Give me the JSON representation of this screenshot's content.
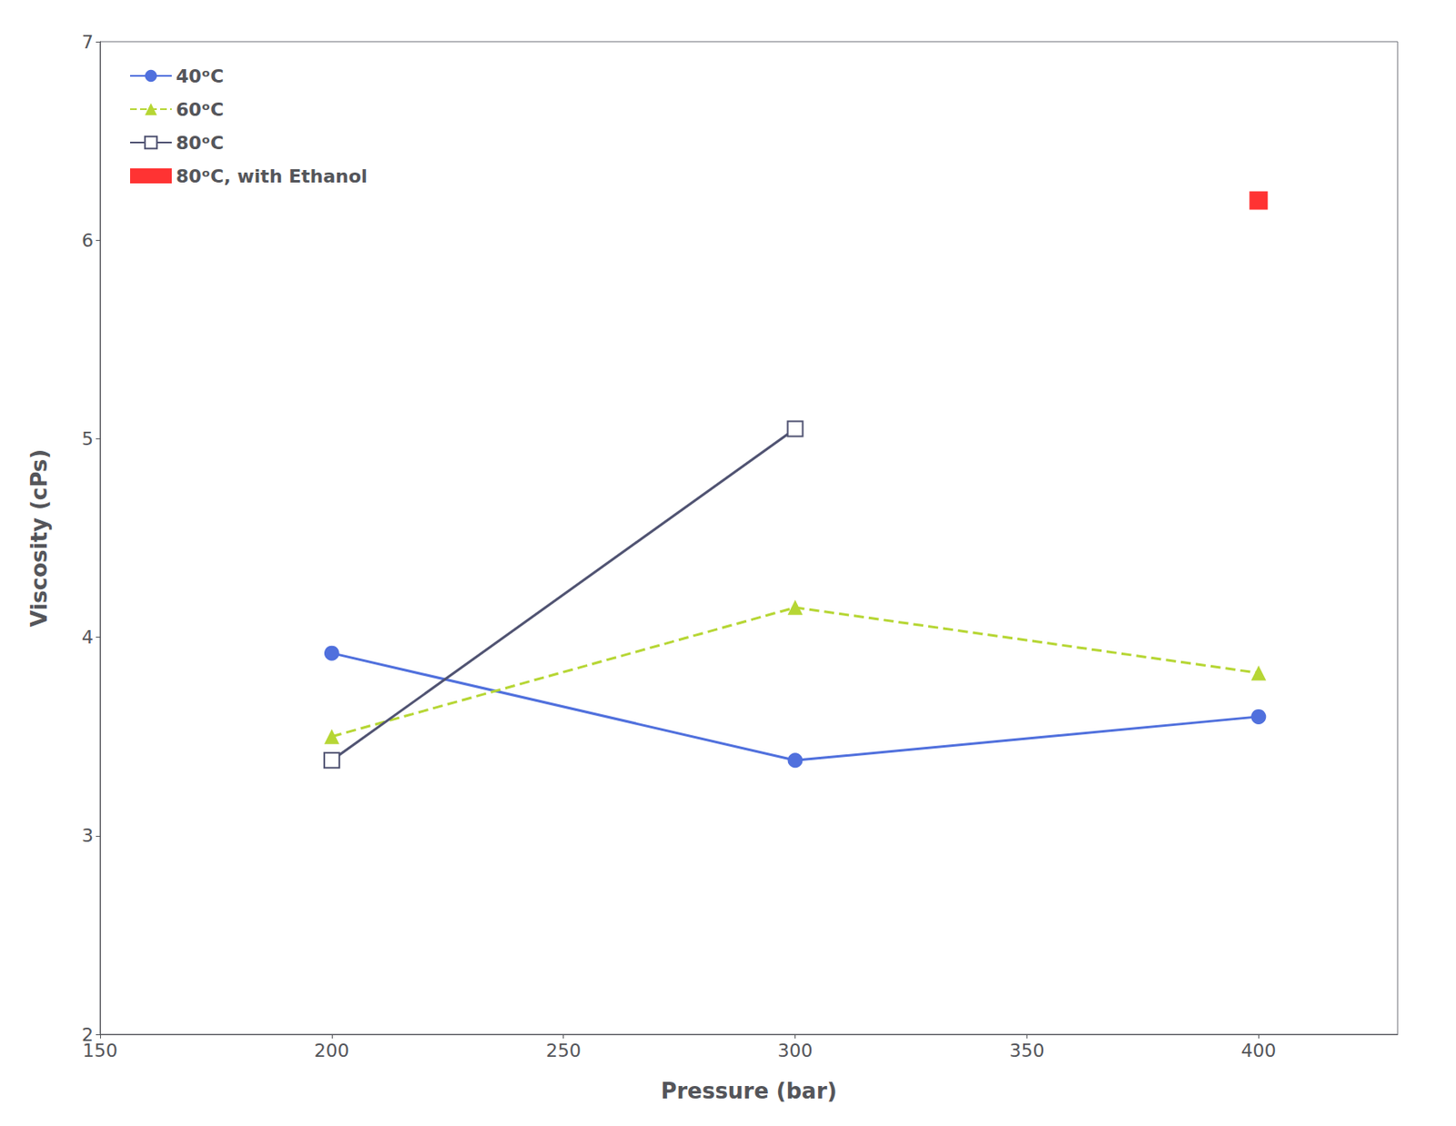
{
  "chart_data": {
    "type": "line",
    "xlabel": "Pressure (bar)",
    "ylabel": "Viscosity (cPs)",
    "xlim": [
      150,
      430
    ],
    "ylim": [
      2,
      7
    ],
    "xticks": [
      150,
      200,
      250,
      300,
      350,
      400
    ],
    "yticks": [
      2,
      3,
      4,
      5,
      6,
      7
    ],
    "grid": false,
    "legend": "upper left",
    "series": [
      {
        "name": "40ᵒC",
        "x": [
          200,
          300,
          400
        ],
        "values": [
          3.92,
          3.38,
          3.6
        ],
        "marker": "circle",
        "line_style": "solid"
      },
      {
        "name": "60ᵒC",
        "x": [
          200,
          300,
          400
        ],
        "values": [
          3.5,
          4.15,
          3.82
        ],
        "marker": "triangle",
        "line_style": "dashed"
      },
      {
        "name": "80ᵒC",
        "x": [
          200,
          300
        ],
        "values": [
          3.38,
          5.05
        ],
        "marker": "open_square",
        "line_style": "solid"
      },
      {
        "name": "80ᵒC, with Ethanol",
        "type": "scatter",
        "x": [
          400
        ],
        "values": [
          6.2
        ],
        "color": "#ff0000",
        "marker": "square"
      }
    ]
  }
}
